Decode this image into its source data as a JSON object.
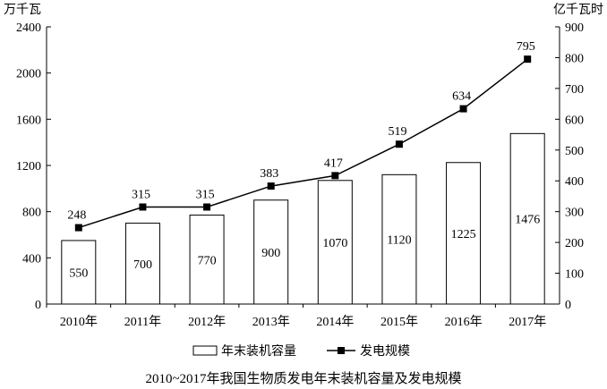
{
  "chart_data": {
    "type": "bar+line",
    "title": "2010~2017年我国生物质发电年末装机容量及发电规模",
    "categories": [
      "2010年",
      "2011年",
      "2012年",
      "2013年",
      "2014年",
      "2015年",
      "2016年",
      "2017年"
    ],
    "left_axis": {
      "unit": "万千瓦",
      "ylim": [
        0,
        2400
      ],
      "ticks": [
        "0",
        "400",
        "800",
        "1200",
        "1600",
        "2000",
        "2400"
      ]
    },
    "right_axis": {
      "unit": "亿千瓦时",
      "ylim": [
        0,
        900
      ],
      "ticks": [
        "0",
        "100",
        "200",
        "300",
        "400",
        "500",
        "600",
        "700",
        "800",
        "900"
      ]
    },
    "series": [
      {
        "name": "年末装机容量",
        "type": "bar",
        "axis": "left",
        "values": [
          550,
          700,
          770,
          900,
          1070,
          1120,
          1225,
          1476
        ],
        "labels": [
          "550",
          "700",
          "770",
          "900",
          "1070",
          "1120",
          "1225",
          "1476"
        ]
      },
      {
        "name": "发电规模",
        "type": "line",
        "axis": "right",
        "values": [
          248,
          315,
          315,
          383,
          417,
          519,
          634,
          795
        ],
        "labels": [
          "248",
          "315",
          "315",
          "383",
          "417",
          "519",
          "634",
          "795"
        ]
      }
    ],
    "grid": false,
    "legend": "bottom"
  }
}
